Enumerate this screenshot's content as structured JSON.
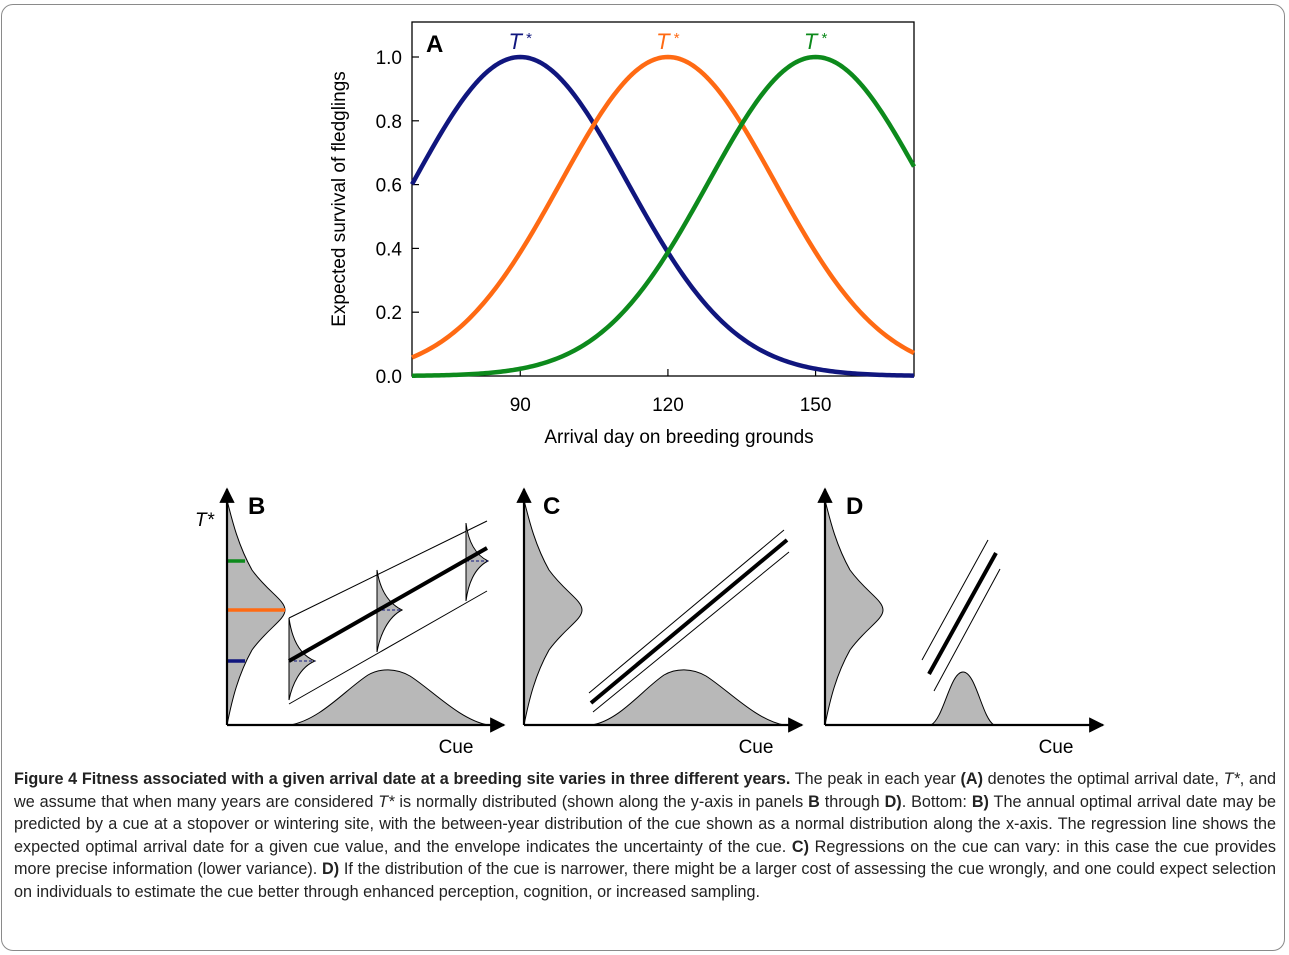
{
  "figure": {
    "panel_a": {
      "label": "A",
      "ylabel": "Expected survival of fledglings",
      "xlabel": "Arrival day on breeding grounds",
      "peak_label": "T*",
      "peak_symbol": "T",
      "peak_star": "*"
    },
    "panel_b": {
      "label": "B",
      "ylabel": "T*",
      "xlabel": "Cue"
    },
    "panel_c": {
      "label": "C",
      "xlabel": "Cue"
    },
    "panel_d": {
      "label": "D",
      "xlabel": "Cue"
    },
    "colors": {
      "blue": "#10167e",
      "orange": "#ff6a13",
      "green": "#0d8a1c",
      "gray": "#b8b8b8"
    }
  },
  "chart_data": {
    "type": "line",
    "panel": "A",
    "xlim": [
      68,
      170
    ],
    "ylim": [
      0,
      1.0
    ],
    "xticks": [
      90,
      120,
      150
    ],
    "yticks": [
      "0.0",
      "0.2",
      "0.4",
      "0.6",
      "0.8",
      "1.0"
    ],
    "xlabel": "Arrival day on breeding grounds",
    "ylabel": "Expected survival of fledglings",
    "grid": false,
    "legend": "none",
    "series": [
      {
        "peak_x": 90,
        "peak_y": 1.0,
        "color": "#10167e",
        "label": "T*"
      },
      {
        "peak_x": 120,
        "peak_y": 1.0,
        "color": "#ff6a13",
        "label": "T*"
      },
      {
        "peak_x": 150,
        "peak_y": 1.0,
        "color": "#0d8a1c",
        "label": "T*"
      }
    ],
    "sample_points": [
      {
        "x": 68,
        "blue": 0.6,
        "orange": 0.045,
        "green": 0.0
      },
      {
        "x": 105,
        "blue": 0.69,
        "orange": 0.69,
        "green": 0.05
      },
      {
        "x": 120,
        "blue": 0.32,
        "orange": 1.0,
        "green": 0.32
      },
      {
        "x": 135,
        "blue": 0.05,
        "orange": 0.69,
        "green": 0.69
      },
      {
        "x": 170,
        "blue": 0.0,
        "orange": 0.045,
        "green": 0.6
      }
    ]
  },
  "caption": {
    "title": "Figure 4 Fitness associated with a given arrival date at a breeding site varies in three different years.",
    "p1": " The peak in each year ",
    "p1_a": "(A)",
    "p2": " denotes the optimal arrival date, ",
    "p2_t": "T*",
    "p3": ", and we assume that when many years are considered ",
    "p3_t": "T*",
    "p4": " is normally distributed (shown along the y-axis in panels ",
    "p4_b": "B",
    "p5": " through ",
    "p5_d": "D)",
    "p6": ". Bottom: ",
    "p6_b": "B)",
    "p7": " The annual optimal arrival date may be predicted by a cue at a stopover or wintering site, with the between-year distribution of the cue shown as a normal distribution along the x-axis. The regression line shows the expected optimal arrival date for a given cue value, and the envelope indicates the uncertainty of the cue. ",
    "p7_c": "C)",
    "p8": " Regressions on the cue can vary: in this case the cue provides more precise information (lower variance). ",
    "p8_d": "D)",
    "p9": " If the distribution of the cue is narrower, there might be a larger cost of assessing the cue wrongly, and one could expect selection on individuals to estimate the cue better through enhanced perception, cognition, or increased sampling."
  }
}
